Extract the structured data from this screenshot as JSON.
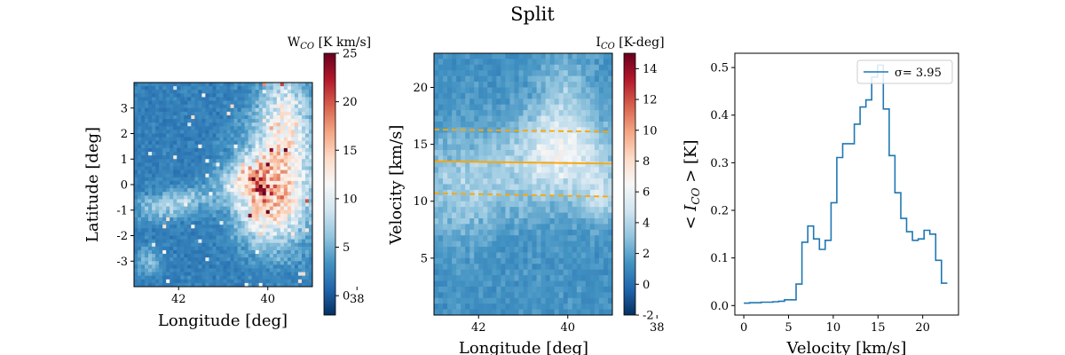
{
  "figure": {
    "title": "Split"
  },
  "chart_data": [
    {
      "type": "heatmap",
      "panel": "map",
      "xlabel": "Longitude [deg]",
      "ylabel": "Latitude [deg]",
      "xlim": [
        43.0,
        39.0
      ],
      "ylim": [
        -4.0,
        4.0
      ],
      "x_ticks": [
        42,
        40,
        38
      ],
      "y_ticks": [
        -3,
        -2,
        -1,
        0,
        1,
        2,
        3
      ],
      "colorbar": {
        "label": "W_CO [K km/s]",
        "range": [
          -2,
          25
        ],
        "ticks": [
          0,
          5,
          10,
          15,
          20,
          25
        ],
        "colormap": "RdBu_r"
      }
    },
    {
      "type": "heatmap",
      "panel": "lv",
      "xlabel": "Longitude [deg]",
      "ylabel": "Velocity [km/s]",
      "xlim": [
        43.0,
        39.0
      ],
      "ylim": [
        0.0,
        23.0
      ],
      "x_ticks": [
        42,
        40,
        38
      ],
      "y_ticks": [
        5,
        10,
        15,
        20
      ],
      "colorbar": {
        "label": "I_CO [K-deg]",
        "range": [
          -2,
          15
        ],
        "ticks": [
          -2,
          0,
          2,
          4,
          6,
          8,
          10,
          12,
          14
        ],
        "colormap": "RdBu_r"
      },
      "overlays": [
        {
          "style": "solid",
          "color": "#ffa500",
          "x": [
            43.0,
            39.0
          ],
          "y": [
            13.5,
            13.3
          ]
        },
        {
          "style": "dashed",
          "color": "#ffa500",
          "x": [
            43.0,
            39.0
          ],
          "y": [
            16.3,
            16.1
          ]
        },
        {
          "style": "dashed",
          "color": "#ffa500",
          "x": [
            43.0,
            39.0
          ],
          "y": [
            10.7,
            10.4
          ]
        }
      ]
    },
    {
      "type": "line",
      "panel": "spectrum",
      "drawstyle": "steps",
      "xlabel": "Velocity [km/s]",
      "ylabel": "<I_CO> [K]",
      "xlim": [
        -1.0,
        24.0
      ],
      "ylim": [
        -0.02,
        0.53
      ],
      "x_ticks": [
        0,
        5,
        10,
        15,
        20
      ],
      "y_ticks": [
        0.0,
        0.1,
        0.2,
        0.3,
        0.4,
        0.5
      ],
      "legend_location": "upper right",
      "series": [
        {
          "name": "σ= 3.95",
          "color": "#1f77b4",
          "x": [
            0,
            0.65,
            1.3,
            1.95,
            2.6,
            3.25,
            3.9,
            4.55,
            5.2,
            5.85,
            6.5,
            7.15,
            7.8,
            8.45,
            9.1,
            9.75,
            10.4,
            11.05,
            11.7,
            12.35,
            13.0,
            13.65,
            14.3,
            14.95,
            15.6,
            16.25,
            16.9,
            17.55,
            18.2,
            18.85,
            19.5,
            20.15,
            20.8,
            21.45,
            22.1,
            22.75
          ],
          "y": [
            0.005,
            0.006,
            0.006,
            0.007,
            0.007,
            0.008,
            0.009,
            0.012,
            0.012,
            0.045,
            0.133,
            0.167,
            0.14,
            0.118,
            0.137,
            0.216,
            0.311,
            0.34,
            0.34,
            0.381,
            0.417,
            0.432,
            0.48,
            0.505,
            0.413,
            0.315,
            0.237,
            0.183,
            0.155,
            0.137,
            0.14,
            0.158,
            0.15,
            0.095,
            0.047,
            0.047
          ]
        }
      ]
    }
  ]
}
